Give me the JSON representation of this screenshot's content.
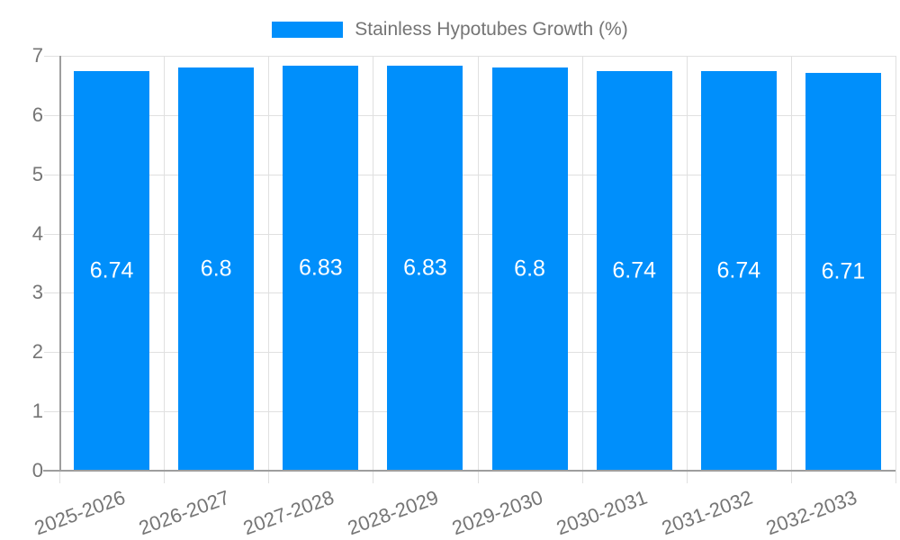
{
  "colors": {
    "accent": "#008FFB",
    "grid": "#e0e0e0",
    "axis": "#9e9e9e",
    "tick_text": "#757575",
    "bar_label_text": "#ffffff",
    "background": "#ffffff"
  },
  "legend": {
    "label": "Stainless Hypotubes Growth (%)",
    "swatch_color": "#008FFB",
    "position": "top-center"
  },
  "chart_data": {
    "type": "bar",
    "title": "Stainless Hypotubes Growth (%)",
    "categories": [
      "2025-2026",
      "2026-2027",
      "2027-2028",
      "2028-2029",
      "2029-2030",
      "2030-2031",
      "2031-2032",
      "2032-2033"
    ],
    "series": [
      {
        "name": "Stainless Hypotubes Growth (%)",
        "values": [
          6.74,
          6.8,
          6.83,
          6.83,
          6.8,
          6.74,
          6.74,
          6.71
        ],
        "color": "#008FFB"
      }
    ],
    "value_labels": [
      "6.74",
      "6.8",
      "6.83",
      "6.83",
      "6.8",
      "6.74",
      "6.74",
      "6.71"
    ],
    "value_labels_position": "center-of-bar",
    "xlabel": "",
    "ylabel": "",
    "ylim": [
      0,
      7
    ],
    "yticks": [
      0,
      1,
      2,
      3,
      4,
      5,
      6,
      7
    ],
    "grid": true,
    "x_label_rotation_deg": -20,
    "legend_position": "top"
  }
}
